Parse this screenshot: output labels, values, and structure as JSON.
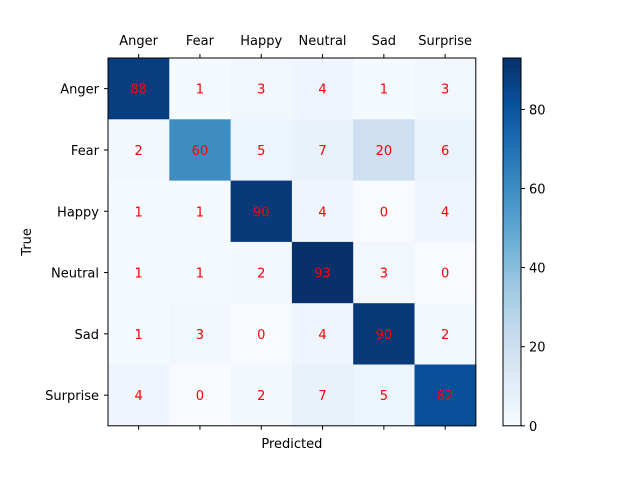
{
  "chart_data": {
    "type": "heatmap",
    "title": "",
    "xlabel": "Predicted",
    "ylabel": "True",
    "x_categories": [
      "Anger",
      "Fear",
      "Happy",
      "Neutral",
      "Sad",
      "Surprise"
    ],
    "y_categories": [
      "Anger",
      "Fear",
      "Happy",
      "Neutral",
      "Sad",
      "Surprise"
    ],
    "values": [
      [
        88,
        1,
        3,
        4,
        1,
        3
      ],
      [
        2,
        60,
        5,
        7,
        20,
        6
      ],
      [
        1,
        1,
        90,
        4,
        0,
        4
      ],
      [
        1,
        1,
        2,
        93,
        3,
        0
      ],
      [
        1,
        3,
        0,
        4,
        90,
        2
      ],
      [
        4,
        0,
        2,
        7,
        5,
        82
      ]
    ],
    "colormap": "Blues",
    "vmin": 0,
    "vmax": 93,
    "colorbar_ticks": [
      0,
      20,
      40,
      60,
      80
    ],
    "annotation_color": "#ff0000",
    "x_tick_position": "top"
  }
}
